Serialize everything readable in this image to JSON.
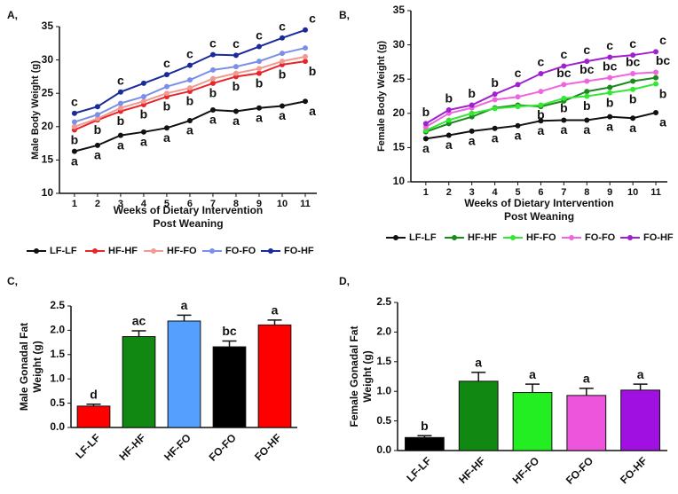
{
  "chart_data": [
    {
      "type": "line",
      "panel": "A,",
      "ylabel": "Male Body Weight (g)",
      "xlabel": [
        "Weeks of Dietary Intervention",
        "Post Weaning"
      ],
      "x": [
        1,
        2,
        3,
        4,
        5,
        6,
        7,
        8,
        9,
        10,
        11
      ],
      "xlim": [
        0.35,
        11.5
      ],
      "xticks": [
        1,
        2,
        3,
        4,
        5,
        6,
        7,
        8,
        9,
        10,
        11
      ],
      "ylim": [
        10,
        35
      ],
      "yticks": [
        10,
        15,
        20,
        25,
        30,
        35
      ],
      "series": [
        {
          "name": "LF-LF",
          "color": "#111111",
          "values": [
            16.3,
            17.2,
            18.7,
            19.2,
            19.8,
            20.9,
            22.5,
            22.3,
            22.8,
            23.1,
            23.8
          ],
          "letters": [
            "a",
            "a",
            "a",
            "a",
            "a",
            "a",
            "a",
            "a",
            "a",
            "a",
            "a"
          ],
          "letters_position": "below"
        },
        {
          "name": "HF-HF",
          "color": "#e8262a",
          "values": [
            19.5,
            21.0,
            22.3,
            23.3,
            24.5,
            25.3,
            26.5,
            27.5,
            28.0,
            29.3,
            29.8
          ],
          "letters": [
            "b",
            "b",
            "b",
            "b",
            "b",
            "b",
            "b",
            "b",
            "b",
            "b",
            "b"
          ],
          "letters_position": "below"
        },
        {
          "name": "HF-FO",
          "color": "#f09a92",
          "values": [
            20.0,
            21.2,
            22.8,
            23.8,
            25.0,
            25.8,
            27.2,
            28.0,
            28.7,
            29.8,
            30.5
          ]
        },
        {
          "name": "FO-FO",
          "color": "#7b8fe8",
          "values": [
            20.7,
            21.8,
            23.5,
            24.5,
            26.0,
            27.0,
            28.5,
            29.0,
            29.8,
            31.0,
            31.8
          ]
        },
        {
          "name": "FO-HF",
          "color": "#1a2a9c",
          "values": [
            22.0,
            23.0,
            25.2,
            26.5,
            27.8,
            29.2,
            30.8,
            30.7,
            32.0,
            33.3,
            34.5
          ],
          "letters": [
            "c",
            null,
            "c",
            null,
            "c",
            "c",
            "c",
            "c",
            "c",
            "c",
            "c"
          ],
          "letters_position": "above"
        }
      ]
    },
    {
      "type": "line",
      "panel": "B,",
      "ylabel": "Female Body Weight (g)",
      "xlabel": [
        "Weeks of Dietary Intervention",
        "Post Weaning"
      ],
      "x": [
        1,
        2,
        3,
        4,
        5,
        6,
        7,
        8,
        9,
        10,
        11
      ],
      "xlim": [
        0.35,
        11.5
      ],
      "xticks": [
        1,
        2,
        3,
        4,
        5,
        6,
        7,
        8,
        9,
        10,
        11
      ],
      "ylim": [
        10,
        35
      ],
      "yticks": [
        10,
        15,
        20,
        25,
        30,
        35
      ],
      "series": [
        {
          "name": "LF-LF",
          "color": "#111111",
          "values": [
            16.3,
            16.8,
            17.4,
            17.8,
            18.2,
            18.9,
            19.0,
            19.0,
            19.5,
            19.3,
            20.1
          ],
          "letters": [
            "a",
            "a",
            "a",
            "a",
            "a",
            "a",
            "a",
            "a",
            "a",
            "a",
            "a"
          ],
          "letters_position": "below"
        },
        {
          "name": "HF-HF",
          "color": "#1a8a1a",
          "values": [
            17.3,
            18.5,
            19.5,
            20.8,
            21.2,
            21.0,
            21.8,
            23.2,
            23.8,
            24.7,
            25.2
          ]
        },
        {
          "name": "HF-FO",
          "color": "#33e833",
          "values": [
            17.5,
            19.0,
            20.0,
            20.7,
            21.0,
            21.2,
            22.2,
            22.5,
            23.0,
            23.5,
            24.3
          ],
          "letters": [
            null,
            null,
            null,
            null,
            null,
            "b",
            "b",
            "b",
            "b",
            "b",
            "b"
          ],
          "letters_position": "below"
        },
        {
          "name": "FO-FO",
          "color": "#ee66dd",
          "values": [
            18.0,
            20.0,
            20.8,
            22.0,
            22.4,
            23.2,
            24.2,
            24.7,
            25.2,
            25.8,
            26.0
          ],
          "letters": [
            null,
            null,
            null,
            null,
            null,
            null,
            "bc",
            "bc",
            "bc",
            "bc",
            "bc"
          ],
          "letters_position": "above"
        },
        {
          "name": "FO-HF",
          "color": "#a020d0",
          "values": [
            18.5,
            20.5,
            21.2,
            22.8,
            24.2,
            25.8,
            26.9,
            27.6,
            28.2,
            28.5,
            29.0
          ],
          "letters": [
            "b",
            "b",
            "b",
            "b",
            "c",
            "c",
            "c",
            "c",
            "c",
            "c",
            "c"
          ],
          "letters_position": "above"
        }
      ]
    },
    {
      "type": "bar",
      "panel": "C,",
      "ylabel": [
        "Male Gonadal Fat",
        "Weight (g)"
      ],
      "categories": [
        "LF-LF",
        "HF-HF",
        "HF-FO",
        "FO-FO",
        "FO-HF"
      ],
      "values": [
        0.44,
        1.87,
        2.19,
        1.66,
        2.11
      ],
      "errors": [
        0.04,
        0.12,
        0.12,
        0.12,
        0.1
      ],
      "colors": [
        "#ff0000",
        "#118811",
        "#55a0ff",
        "#000000",
        "#ff0000"
      ],
      "letters": [
        "d",
        "ac",
        "a",
        "bc",
        "a"
      ],
      "ylim": [
        0,
        2.5
      ],
      "yticks": [
        {
          "value": 0,
          "label": "0.0"
        },
        {
          "value": 0.5,
          "label": "0.5"
        },
        {
          "value": 1,
          "label": "1.0"
        },
        {
          "value": 1.5,
          "label": "1.5"
        },
        {
          "value": 2,
          "label": "2.0"
        },
        {
          "value": 2.5,
          "label": "2.5"
        }
      ]
    },
    {
      "type": "bar",
      "panel": "D,",
      "ylabel": [
        "Female Gonadal Fat",
        "Weight (g)"
      ],
      "categories": [
        "LF-LF",
        "HF-HF",
        "HF-FO",
        "FO-FO",
        "FO-HF"
      ],
      "values": [
        0.22,
        1.17,
        0.98,
        0.93,
        1.02
      ],
      "errors": [
        0.03,
        0.15,
        0.14,
        0.12,
        0.1
      ],
      "colors": [
        "#000000",
        "#118811",
        "#22ee22",
        "#ee55dd",
        "#a010e0"
      ],
      "letters": [
        "b",
        "a",
        "a",
        "a",
        "a"
      ],
      "ylim": [
        0,
        2.5
      ],
      "yticks": [
        {
          "value": 0,
          "label": "0.0"
        },
        {
          "value": 0.5,
          "label": "0.5"
        },
        {
          "value": 1,
          "label": "1.0"
        },
        {
          "value": 1.5,
          "label": "1.5"
        },
        {
          "value": 2,
          "label": "2.0"
        },
        {
          "value": 2.5,
          "label": "2.5"
        }
      ]
    }
  ]
}
